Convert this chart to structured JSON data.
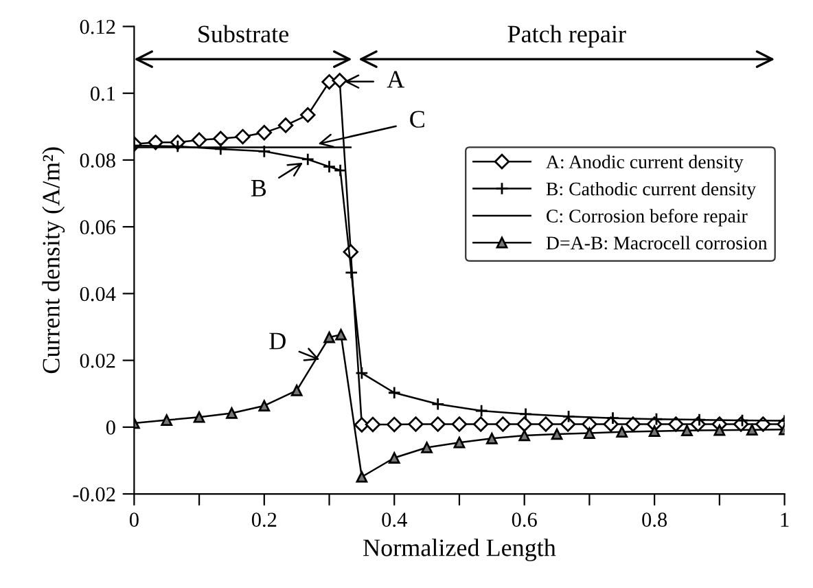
{
  "chart_data": {
    "type": "line",
    "xlabel": "Normalized Length",
    "ylabel": "Current density (A/m²)",
    "xlim": [
      0,
      1
    ],
    "ylim": [
      -0.02,
      0.12
    ],
    "xticks": [
      0,
      {
        "value": 0.1,
        "label": null
      },
      0.2,
      {
        "value": 0.3,
        "label": null
      },
      0.4,
      {
        "value": 0.5,
        "label": null
      },
      0.6,
      {
        "value": 0.7,
        "label": null
      },
      0.8,
      {
        "value": 0.9,
        "label": null
      },
      1
    ],
    "yticks": [
      -0.02,
      0,
      0.02,
      0.04,
      0.06,
      0.08,
      0.1,
      0.12
    ],
    "grid": false,
    "legend": "right",
    "line_style": "solid",
    "series": [
      {
        "name": "A: Anodic current density",
        "color": "#000000",
        "marker": "diamond",
        "x": [
          0,
          0.033,
          0.067,
          0.1,
          0.133,
          0.167,
          0.2,
          0.233,
          0.267,
          0.3,
          0.316,
          0.333,
          0.35,
          0.367,
          0.4,
          0.433,
          0.467,
          0.5,
          0.533,
          0.567,
          0.6,
          0.633,
          0.667,
          0.7,
          0.733,
          0.767,
          0.8,
          0.833,
          0.867,
          0.9,
          0.933,
          0.967,
          1
        ],
        "values": [
          0.0848,
          0.0853,
          0.0853,
          0.086,
          0.0864,
          0.087,
          0.0882,
          0.0904,
          0.0935,
          0.1034,
          0.1038,
          0.0525,
          0.0007,
          0.0008,
          0.0008,
          0.0009,
          0.0009,
          0.0009,
          0.0009,
          0.0009,
          0.0009,
          0.0009,
          0.0009,
          0.0009,
          0.0009,
          0.0009,
          0.0009,
          0.0009,
          0.0009,
          0.0009,
          0.0009,
          0.0009,
          0.0009
        ]
      },
      {
        "name": "B: Cathodic current density",
        "color": "#000000",
        "marker": "cross",
        "x": [
          0,
          0.067,
          0.133,
          0.2,
          0.267,
          0.3,
          0.317,
          0.334,
          0.35,
          0.4,
          0.467,
          0.534,
          0.602,
          0.668,
          0.736,
          0.803,
          0.869,
          0.935,
          1
        ],
        "values": [
          0.0843,
          0.0841,
          0.0833,
          0.0826,
          0.0802,
          0.078,
          0.0769,
          0.0463,
          0.0162,
          0.0103,
          0.0069,
          0.0049,
          0.0039,
          0.0032,
          0.0027,
          0.0024,
          0.0022,
          0.002,
          0.0019
        ]
      },
      {
        "name": "C: Corrosion before repair",
        "color": "#000000",
        "marker": "none",
        "x": [
          0,
          0.333
        ],
        "values": [
          0.0838,
          0.0838
        ]
      },
      {
        "name": "D=A-B: Macrocell corrosion",
        "color": "#000000",
        "marker": "triangle",
        "x": [
          0,
          0.05,
          0.1,
          0.15,
          0.2,
          0.25,
          0.3,
          0.318,
          0.35,
          0.4,
          0.45,
          0.5,
          0.55,
          0.6,
          0.65,
          0.7,
          0.75,
          0.8,
          0.85,
          0.9,
          0.95,
          1
        ],
        "values": [
          0.0012,
          0.0021,
          0.003,
          0.0042,
          0.0064,
          0.011,
          0.0269,
          0.0277,
          -0.0149,
          -0.0092,
          -0.0061,
          -0.0046,
          -0.0034,
          -0.0025,
          -0.0021,
          -0.0018,
          -0.0014,
          -0.0012,
          -0.001,
          -0.0009,
          -0.0008,
          -0.0007
        ]
      }
    ],
    "annotations": [
      "Substrate",
      "Patch repair",
      {
        "text": "A",
        "x": 0.32,
        "y": 0.1035
      },
      {
        "text": "B",
        "x": 0.262,
        "y": 0.0795
      },
      {
        "text": "C",
        "x": 0.28,
        "y": 0.0847
      },
      {
        "text": "D",
        "x": 0.288,
        "y": 0.02
      }
    ]
  }
}
